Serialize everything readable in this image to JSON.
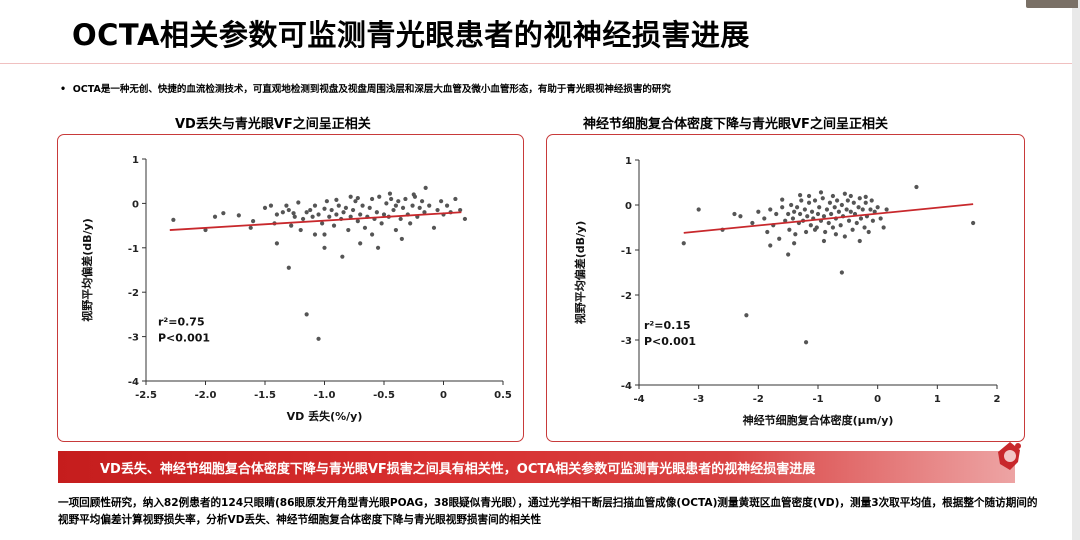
{
  "slide": {
    "title": "OCTA相关参数可监测青光眼患者的视神经损害进展",
    "bullet": "OCTA是一种无创、快捷的血流检测技术，可直观地检测到视盘及视盘周围浅层和深层大血管及微小血管形态，有助于青光眼视神经损害的研究",
    "banner": "VD丢失、神经节细胞复合体密度下降与青光眼VF损害之间具有相关性，OCTA相关参数可监测青光眼患者的视神经损害进展",
    "footnote": "一项回顾性研究，纳入82例患者的124只眼睛(86眼原发开角型青光眼POAG，38眼疑似青光眼），通过光学相干断层扫描血管成像(OCTA)测量黄斑区血管密度(VD)，测量3次取平均值，根据整个随访期间的视野平均偏差计算视野损失率，分析VD丢失、神经节细胞复合体密度下降与青光眼视野损害间的相关性",
    "colors": {
      "accent": "#c8282c",
      "points": "#555555",
      "trend": "#c8282c"
    }
  },
  "chart_data": [
    {
      "type": "scatter",
      "title": "VD丢失与青光眼VF之间呈正相关",
      "xlabel": "VD 丢失(%/y)",
      "ylabel": "视野平均偏差(dB/y)",
      "xlim": [
        -2.5,
        0.5
      ],
      "ylim": [
        -4,
        1
      ],
      "xticks": [
        "-2.5",
        "-2.0",
        "-1.5",
        "-1.0",
        "-0.5",
        "0",
        "0.5"
      ],
      "yticks": [
        "1",
        "0",
        "-1",
        "-2",
        "-3",
        "-4"
      ],
      "annotation": {
        "r2": "r²=0.75",
        "p": "P<0.001"
      },
      "trend": {
        "x": [
          -2.3,
          0.15
        ],
        "y": [
          -0.6,
          -0.2
        ]
      },
      "points": [
        [
          -2.27,
          -0.37
        ],
        [
          -2.0,
          -0.6
        ],
        [
          -1.92,
          -0.3
        ],
        [
          -1.85,
          -0.22
        ],
        [
          -1.72,
          -0.27
        ],
        [
          -1.6,
          -0.4
        ],
        [
          -1.5,
          -0.1
        ],
        [
          -1.45,
          -0.05
        ],
        [
          -1.42,
          -0.45
        ],
        [
          -1.4,
          -0.25
        ],
        [
          -1.35,
          -0.2
        ],
        [
          -1.32,
          -0.05
        ],
        [
          -1.3,
          -0.15
        ],
        [
          -1.28,
          -0.5
        ],
        [
          -1.25,
          -0.3
        ],
        [
          -1.22,
          0.02
        ],
        [
          -1.2,
          -0.6
        ],
        [
          -1.18,
          -0.35
        ],
        [
          -1.15,
          -0.2
        ],
        [
          -1.12,
          -0.15
        ],
        [
          -1.1,
          -0.3
        ],
        [
          -1.08,
          -0.05
        ],
        [
          -1.05,
          -0.25
        ],
        [
          -1.02,
          -0.45
        ],
        [
          -1.0,
          -0.7
        ],
        [
          -0.98,
          0.05
        ],
        [
          -0.96,
          -0.3
        ],
        [
          -0.94,
          -0.15
        ],
        [
          -0.92,
          -0.5
        ],
        [
          -0.9,
          -0.25
        ],
        [
          -0.88,
          -0.05
        ],
        [
          -0.86,
          -0.35
        ],
        [
          -0.84,
          -0.2
        ],
        [
          -0.82,
          -0.1
        ],
        [
          -0.8,
          -0.6
        ],
        [
          -0.78,
          -0.3
        ],
        [
          -0.76,
          -0.15
        ],
        [
          -0.74,
          0.05
        ],
        [
          -0.72,
          -0.4
        ],
        [
          -0.7,
          -0.25
        ],
        [
          -0.68,
          -0.05
        ],
        [
          -0.66,
          -0.55
        ],
        [
          -0.64,
          -0.3
        ],
        [
          -0.62,
          -0.1
        ],
        [
          -0.6,
          0.1
        ],
        [
          -0.58,
          -0.35
        ],
        [
          -0.56,
          -0.2
        ],
        [
          -0.54,
          0.15
        ],
        [
          -0.52,
          -0.45
        ],
        [
          -0.5,
          -0.25
        ],
        [
          -0.48,
          0.0
        ],
        [
          -0.46,
          -0.3
        ],
        [
          -0.44,
          0.1
        ],
        [
          -0.42,
          -0.15
        ],
        [
          -0.4,
          -0.6
        ],
        [
          -0.38,
          0.05
        ],
        [
          -0.36,
          -0.35
        ],
        [
          -0.34,
          -0.1
        ],
        [
          -0.32,
          0.1
        ],
        [
          -0.3,
          -0.25
        ],
        [
          -0.28,
          -0.45
        ],
        [
          -0.26,
          -0.05
        ],
        [
          -0.24,
          0.15
        ],
        [
          -0.22,
          -0.3
        ],
        [
          -0.2,
          -0.1
        ],
        [
          -0.18,
          0.05
        ],
        [
          -0.16,
          -0.2
        ],
        [
          -0.12,
          -0.05
        ],
        [
          -0.08,
          -0.55
        ],
        [
          -0.05,
          -0.15
        ],
        [
          -0.02,
          0.05
        ],
        [
          0.0,
          -0.25
        ],
        [
          0.03,
          -0.05
        ],
        [
          0.06,
          -0.2
        ],
        [
          0.1,
          0.1
        ],
        [
          0.14,
          -0.15
        ],
        [
          -1.3,
          -1.45
        ],
        [
          -1.15,
          -2.5
        ],
        [
          -1.05,
          -3.05
        ],
        [
          -1.0,
          -1.0
        ],
        [
          -0.85,
          -1.2
        ],
        [
          -0.7,
          -0.9
        ],
        [
          -0.55,
          -1.0
        ],
        [
          -0.35,
          -0.8
        ],
        [
          -0.6,
          -0.7
        ],
        [
          -1.4,
          -0.9
        ],
        [
          -1.62,
          -0.55
        ],
        [
          -1.08,
          -0.7
        ],
        [
          -0.72,
          0.12
        ],
        [
          -0.4,
          -0.05
        ],
        [
          -0.15,
          0.35
        ],
        [
          -0.45,
          0.22
        ],
        [
          -0.78,
          0.15
        ],
        [
          -0.9,
          0.08
        ],
        [
          0.18,
          -0.35
        ],
        [
          -0.25,
          0.2
        ],
        [
          -1.0,
          -0.12
        ],
        [
          -1.26,
          -0.22
        ]
      ]
    },
    {
      "type": "scatter",
      "title": "神经节细胞复合体密度下降与青光眼VF之间呈正相关",
      "xlabel": "神经节细胞复合体密度(μm/y)",
      "ylabel": "视野平均偏差(dB/y)",
      "xlim": [
        -4,
        2
      ],
      "ylim": [
        -4,
        1
      ],
      "xticks": [
        "-4",
        "-3",
        "-2",
        "-1",
        "0",
        "1",
        "2"
      ],
      "yticks": [
        "1",
        "0",
        "-1",
        "-2",
        "-3",
        "-4"
      ],
      "annotation": {
        "r2": "r²=0.15",
        "p": "P<0.001"
      },
      "trend": {
        "x": [
          -3.25,
          1.6
        ],
        "y": [
          -0.62,
          0.02
        ]
      },
      "points": [
        [
          -3.25,
          -0.85
        ],
        [
          -3.0,
          -0.1
        ],
        [
          -2.6,
          -0.55
        ],
        [
          -2.3,
          -0.25
        ],
        [
          -2.2,
          -2.45
        ],
        [
          -2.1,
          -0.4
        ],
        [
          -2.0,
          -0.15
        ],
        [
          -1.9,
          -0.3
        ],
        [
          -1.85,
          -0.6
        ],
        [
          -1.8,
          -0.1
        ],
        [
          -1.75,
          -0.45
        ],
        [
          -1.7,
          -0.2
        ],
        [
          -1.65,
          -0.75
        ],
        [
          -1.6,
          -0.05
        ],
        [
          -1.55,
          -0.35
        ],
        [
          -1.5,
          -0.2
        ],
        [
          -1.48,
          -0.55
        ],
        [
          -1.45,
          0.0
        ],
        [
          -1.42,
          -0.3
        ],
        [
          -1.4,
          -0.15
        ],
        [
          -1.38,
          -0.65
        ],
        [
          -1.35,
          -0.05
        ],
        [
          -1.32,
          -0.4
        ],
        [
          -1.3,
          -0.2
        ],
        [
          -1.28,
          0.1
        ],
        [
          -1.25,
          -0.35
        ],
        [
          -1.22,
          -0.1
        ],
        [
          -1.2,
          -0.6
        ],
        [
          -1.18,
          -0.25
        ],
        [
          -1.15,
          0.05
        ],
        [
          -1.12,
          -0.45
        ],
        [
          -1.1,
          -0.15
        ],
        [
          -1.08,
          -0.3
        ],
        [
          -1.05,
          0.1
        ],
        [
          -1.02,
          -0.5
        ],
        [
          -1.0,
          -0.2
        ],
        [
          -0.98,
          -0.05
        ],
        [
          -0.95,
          -0.35
        ],
        [
          -0.92,
          0.15
        ],
        [
          -0.9,
          -0.25
        ],
        [
          -0.88,
          -0.6
        ],
        [
          -0.85,
          -0.1
        ],
        [
          -0.82,
          -0.4
        ],
        [
          -0.8,
          0.05
        ],
        [
          -0.78,
          -0.2
        ],
        [
          -0.75,
          -0.5
        ],
        [
          -0.72,
          -0.05
        ],
        [
          -0.7,
          -0.3
        ],
        [
          -0.68,
          0.1
        ],
        [
          -0.65,
          -0.15
        ],
        [
          -0.62,
          -0.45
        ],
        [
          -0.6,
          0.0
        ],
        [
          -0.58,
          -0.25
        ],
        [
          -0.55,
          -0.7
        ],
        [
          -0.52,
          -0.1
        ],
        [
          -0.5,
          0.1
        ],
        [
          -0.48,
          -0.35
        ],
        [
          -0.45,
          -0.15
        ],
        [
          -0.42,
          -0.55
        ],
        [
          -0.4,
          0.05
        ],
        [
          -0.38,
          -0.2
        ],
        [
          -0.35,
          -0.4
        ],
        [
          -0.32,
          -0.05
        ],
        [
          -0.3,
          0.15
        ],
        [
          -0.28,
          -0.3
        ],
        [
          -0.25,
          -0.1
        ],
        [
          -0.22,
          -0.5
        ],
        [
          -0.2,
          0.05
        ],
        [
          -0.18,
          -0.25
        ],
        [
          -0.15,
          -0.6
        ],
        [
          -0.12,
          -0.1
        ],
        [
          -0.1,
          0.1
        ],
        [
          -0.08,
          -0.35
        ],
        [
          -0.05,
          -0.15
        ],
        [
          0.0,
          -0.05
        ],
        [
          0.05,
          -0.3
        ],
        [
          0.1,
          -0.5
        ],
        [
          0.15,
          -0.1
        ],
        [
          0.65,
          0.4
        ],
        [
          1.6,
          -0.4
        ],
        [
          -1.2,
          -3.05
        ],
        [
          -0.6,
          -1.5
        ],
        [
          -1.5,
          -1.1
        ],
        [
          -1.8,
          -0.9
        ],
        [
          -0.9,
          -0.8
        ],
        [
          -0.3,
          -0.8
        ],
        [
          -1.05,
          -0.55
        ],
        [
          -0.7,
          -0.65
        ],
        [
          -2.4,
          -0.2
        ],
        [
          -1.6,
          0.12
        ],
        [
          -0.45,
          0.2
        ],
        [
          -1.3,
          0.22
        ],
        [
          -0.95,
          0.28
        ],
        [
          -0.2,
          0.18
        ],
        [
          -0.55,
          0.25
        ],
        [
          -1.4,
          -0.85
        ],
        [
          -0.75,
          0.2
        ],
        [
          -1.15,
          0.2
        ]
      ]
    }
  ]
}
